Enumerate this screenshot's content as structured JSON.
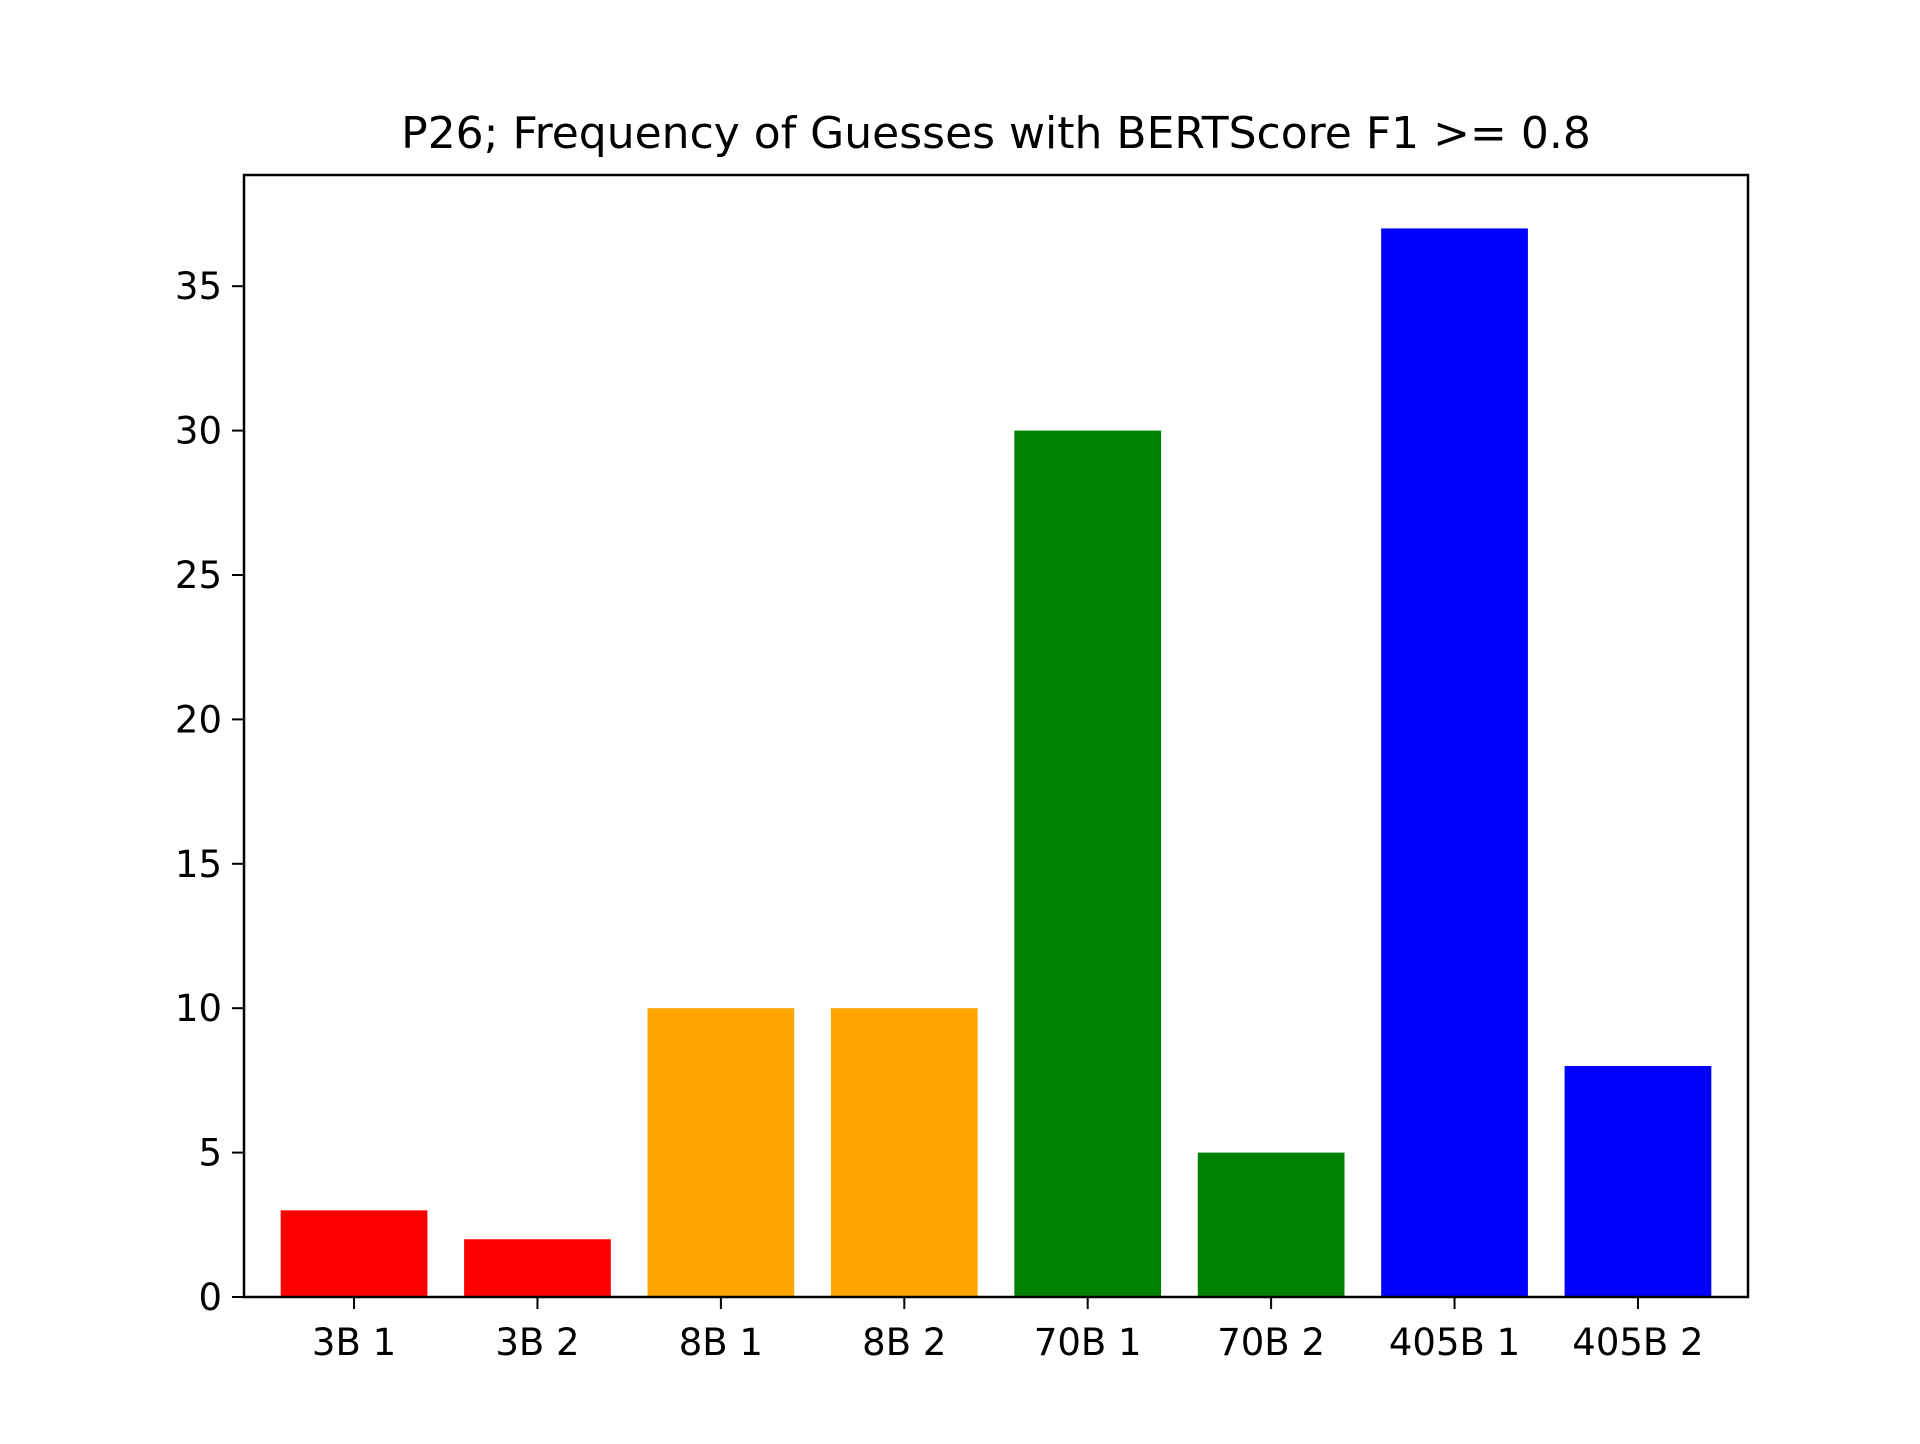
{
  "chart_data": {
    "type": "bar",
    "title": "P26; Frequency of Guesses with BERTScore F1 >= 0.8",
    "xlabel": "",
    "ylabel": "",
    "categories": [
      "3B 1",
      "3B 2",
      "8B 1",
      "8B 2",
      "70B 1",
      "70B 2",
      "405B 1",
      "405B 2"
    ],
    "values": [
      3,
      2,
      10,
      10,
      30,
      5,
      37,
      8
    ],
    "colors": [
      "#ff0000",
      "#ff0000",
      "#ffa500",
      "#ffa500",
      "#008000",
      "#008000",
      "#0000ff",
      "#0000ff"
    ],
    "ylim": [
      0,
      38.85
    ],
    "yticks": [
      0,
      5,
      10,
      15,
      20,
      25,
      30,
      35
    ],
    "grid": false,
    "legend": "none"
  }
}
